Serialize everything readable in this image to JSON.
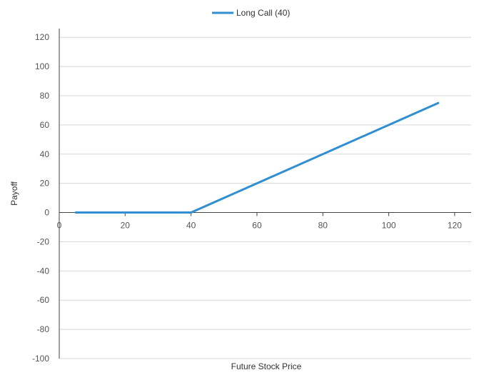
{
  "chart_data": {
    "type": "line",
    "title": "",
    "xlabel": "Future Stock Price",
    "ylabel": "Payoff",
    "xlim": [
      0,
      125
    ],
    "ylim": [
      -100,
      125
    ],
    "x_ticks": [
      0,
      20,
      40,
      60,
      80,
      100,
      120
    ],
    "y_ticks": [
      -100,
      -80,
      -60,
      -40,
      -20,
      0,
      20,
      40,
      60,
      80,
      100,
      120
    ],
    "grid": "horizontal",
    "legend": "top-center",
    "series": [
      {
        "name": "Long Call (40)",
        "color": "#2f8fd1",
        "x": [
          5,
          40,
          115
        ],
        "y": [
          0,
          0,
          75
        ]
      }
    ]
  }
}
